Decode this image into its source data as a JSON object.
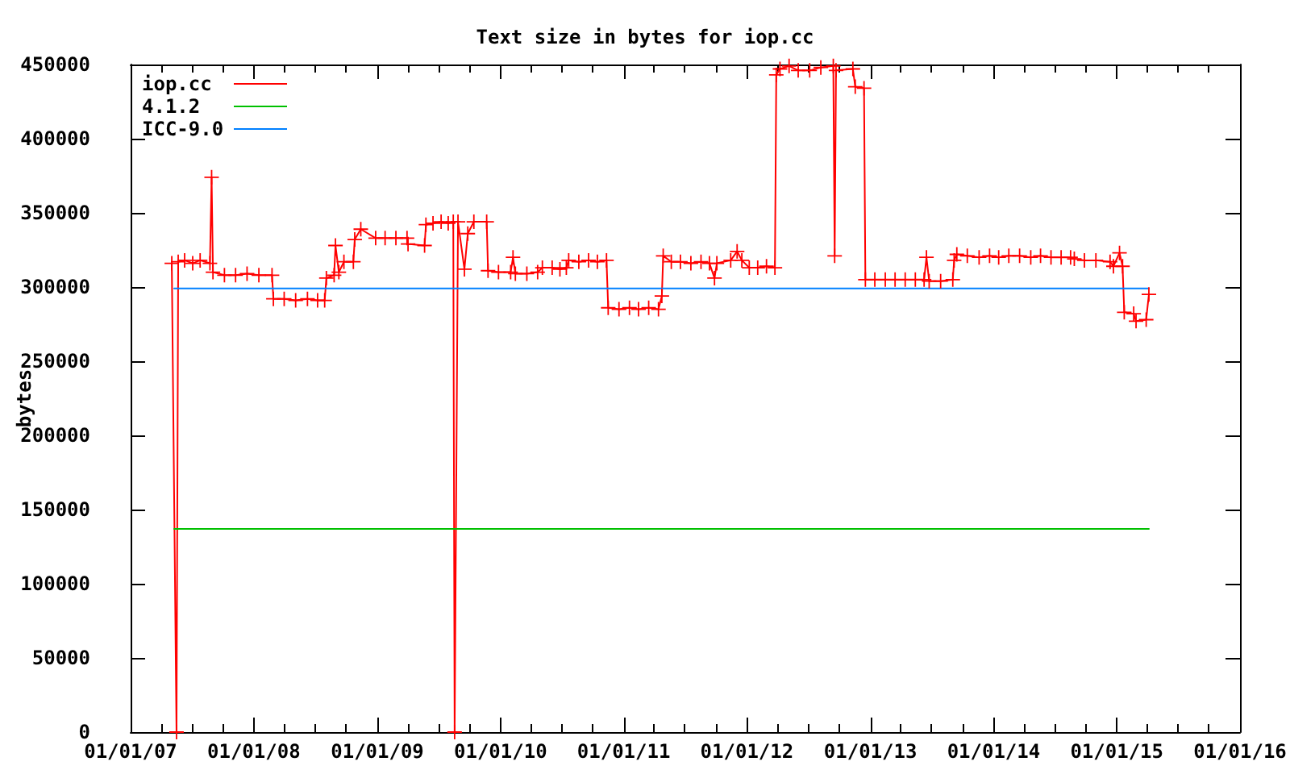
{
  "chart_data": {
    "type": "line",
    "title": "Text size in bytes for iop.cc",
    "ylabel": "bytes",
    "xlim": [
      "2007-01-01",
      "2016-01-01"
    ],
    "xticks": [
      {
        "value": "2007-01-01",
        "label": "01/01/07"
      },
      {
        "value": "2007-04-01",
        "label": null
      },
      {
        "value": "2007-07-01",
        "label": null
      },
      {
        "value": "2007-10-01",
        "label": null
      },
      {
        "value": "2008-01-01",
        "label": "01/01/08"
      },
      {
        "value": "2008-04-01",
        "label": null
      },
      {
        "value": "2008-07-01",
        "label": null
      },
      {
        "value": "2008-10-01",
        "label": null
      },
      {
        "value": "2009-01-01",
        "label": "01/01/09"
      },
      {
        "value": "2009-04-01",
        "label": null
      },
      {
        "value": "2009-07-01",
        "label": null
      },
      {
        "value": "2009-10-01",
        "label": null
      },
      {
        "value": "2010-01-01",
        "label": "01/01/10"
      },
      {
        "value": "2010-04-01",
        "label": null
      },
      {
        "value": "2010-07-01",
        "label": null
      },
      {
        "value": "2010-10-01",
        "label": null
      },
      {
        "value": "2011-01-01",
        "label": "01/01/11"
      },
      {
        "value": "2011-04-01",
        "label": null
      },
      {
        "value": "2011-07-01",
        "label": null
      },
      {
        "value": "2011-10-01",
        "label": null
      },
      {
        "value": "2012-01-01",
        "label": "01/01/12"
      },
      {
        "value": "2012-04-01",
        "label": null
      },
      {
        "value": "2012-07-01",
        "label": null
      },
      {
        "value": "2012-10-01",
        "label": null
      },
      {
        "value": "2013-01-01",
        "label": "01/01/13"
      },
      {
        "value": "2013-04-01",
        "label": null
      },
      {
        "value": "2013-07-01",
        "label": null
      },
      {
        "value": "2013-10-01",
        "label": null
      },
      {
        "value": "2014-01-01",
        "label": "01/01/14"
      },
      {
        "value": "2014-04-01",
        "label": null
      },
      {
        "value": "2014-07-01",
        "label": null
      },
      {
        "value": "2014-10-01",
        "label": null
      },
      {
        "value": "2015-01-01",
        "label": "01/01/15"
      },
      {
        "value": "2015-04-01",
        "label": null
      },
      {
        "value": "2015-07-01",
        "label": null
      },
      {
        "value": "2015-10-01",
        "label": null
      },
      {
        "value": "2016-01-01",
        "label": "01/01/16"
      }
    ],
    "ylim": [
      0,
      450000
    ],
    "yticks": [
      0,
      50000,
      100000,
      150000,
      200000,
      250000,
      300000,
      350000,
      400000,
      450000
    ],
    "legend": "top left",
    "series": [
      {
        "name": "iop.cc",
        "color": "#ff0000",
        "marker": "cross",
        "x": [
          "2007-05-03",
          "2007-05-17",
          "2007-05-22",
          "2007-06-10",
          "2007-07-04",
          "2007-07-26",
          "2007-08-24",
          "2007-08-29",
          "2007-09-02",
          "2007-10-06",
          "2007-11-08",
          "2007-12-12",
          "2008-01-16",
          "2008-02-24",
          "2008-02-28",
          "2008-03-31",
          "2008-05-04",
          "2008-06-08",
          "2008-07-08",
          "2008-07-29",
          "2008-08-03",
          "2008-08-26",
          "2008-08-30",
          "2008-09-09",
          "2008-09-24",
          "2008-10-22",
          "2008-10-26",
          "2008-11-13",
          "2008-12-27",
          "2009-01-24",
          "2009-02-25",
          "2009-03-30",
          "2009-04-02",
          "2009-05-21",
          "2009-05-25",
          "2009-06-15",
          "2009-07-09",
          "2009-07-30",
          "2009-08-14",
          "2009-08-18",
          "2009-08-28",
          "2009-09-16",
          "2009-09-26",
          "2009-10-14",
          "2009-11-21",
          "2009-11-25",
          "2009-12-26",
          "2010-01-31",
          "2010-02-07",
          "2010-02-14",
          "2010-03-20",
          "2010-04-21",
          "2010-05-05",
          "2010-06-03",
          "2010-06-26",
          "2010-07-15",
          "2010-07-22",
          "2010-08-21",
          "2010-09-19",
          "2010-10-15",
          "2010-11-11",
          "2010-11-16",
          "2010-12-18",
          "2011-01-18",
          "2011-02-14",
          "2011-03-16",
          "2011-04-14",
          "2011-04-24",
          "2011-04-28",
          "2011-05-22",
          "2011-06-18",
          "2011-07-19",
          "2011-08-18",
          "2011-09-12",
          "2011-09-27",
          "2011-10-04",
          "2011-11-14",
          "2011-12-03",
          "2011-12-17",
          "2012-01-08",
          "2012-02-02",
          "2012-02-28",
          "2012-03-24",
          "2012-03-28",
          "2012-04-08",
          "2012-05-05",
          "2012-06-01",
          "2012-07-05",
          "2012-08-07",
          "2012-09-13",
          "2012-09-17",
          "2012-09-21",
          "2012-11-10",
          "2012-11-17",
          "2012-12-13",
          "2012-12-17",
          "2013-01-14",
          "2013-02-14",
          "2013-03-15",
          "2013-04-14",
          "2013-05-14",
          "2013-06-09",
          "2013-06-16",
          "2013-06-24",
          "2013-07-28",
          "2013-09-02",
          "2013-09-06",
          "2013-09-14",
          "2013-10-15",
          "2013-11-19",
          "2013-12-20",
          "2014-01-16",
          "2014-02-15",
          "2014-03-19",
          "2014-04-21",
          "2014-05-20",
          "2014-06-20",
          "2014-07-20",
          "2014-08-17",
          "2014-08-28",
          "2014-09-27",
          "2014-10-31",
          "2014-12-12",
          "2014-12-22",
          "2015-01-09",
          "2015-01-18",
          "2015-01-23",
          "2015-02-20",
          "2015-02-27",
          "2015-03-29",
          "2015-04-06"
        ],
        "values": [
          316000,
          0,
          317000,
          318000,
          316000,
          318000,
          316000,
          374000,
          310000,
          308000,
          308000,
          309000,
          308000,
          308000,
          292000,
          292000,
          291000,
          292000,
          291000,
          291000,
          306000,
          308000,
          328000,
          310000,
          317000,
          317000,
          332000,
          339000,
          333000,
          333000,
          333000,
          333000,
          329000,
          328000,
          342000,
          343000,
          344000,
          343000,
          344000,
          0,
          344000,
          312000,
          336000,
          344000,
          344000,
          311000,
          310000,
          310000,
          320000,
          309000,
          309000,
          310000,
          313000,
          313000,
          312000,
          313000,
          318000,
          317000,
          318000,
          317000,
          318000,
          286000,
          285000,
          286000,
          285000,
          286000,
          285000,
          294000,
          321000,
          317000,
          317000,
          316000,
          317000,
          316000,
          306000,
          316000,
          318000,
          324000,
          318000,
          313000,
          313000,
          314000,
          313000,
          443000,
          447000,
          449000,
          446000,
          446000,
          448000,
          449000,
          321000,
          446000,
          447000,
          435000,
          434000,
          305000,
          305000,
          305000,
          305000,
          305000,
          305000,
          305000,
          320000,
          304000,
          304000,
          305000,
          318000,
          322000,
          321000,
          320000,
          321000,
          320000,
          321000,
          321000,
          320000,
          321000,
          320000,
          320000,
          320000,
          319000,
          318000,
          318000,
          317000,
          314000,
          323000,
          314000,
          283000,
          282000,
          277000,
          278000,
          295000
        ]
      },
      {
        "name": "4.1.2",
        "color": "#00c000",
        "marker": "none",
        "x": [
          "2007-05-10",
          "2015-04-06"
        ],
        "values": [
          137000,
          137000
        ]
      },
      {
        "name": "ICC-9.0",
        "color": "#0080ff",
        "marker": "none",
        "x": [
          "2007-05-10",
          "2015-04-06"
        ],
        "values": [
          299000,
          299000
        ]
      }
    ]
  }
}
